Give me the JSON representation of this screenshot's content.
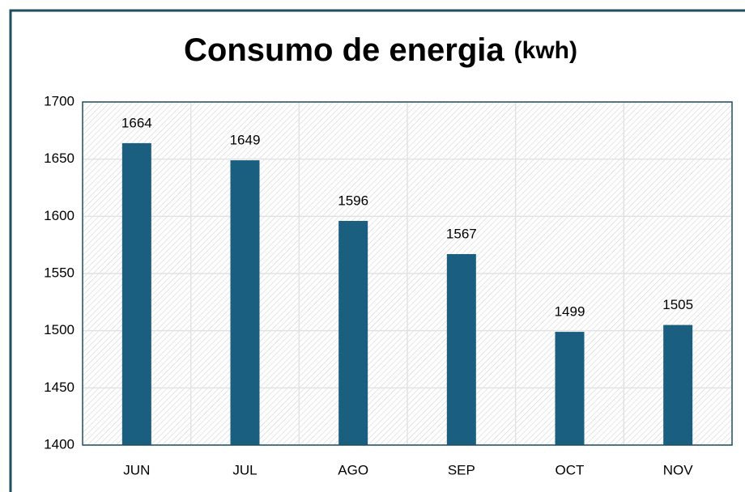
{
  "chart_data": {
    "type": "bar",
    "title": "Consumo de energia",
    "title_unit": "(kwh)",
    "categories": [
      "JUN",
      "JUL",
      "AGO",
      "SEP",
      "OCT",
      "NOV"
    ],
    "values": [
      1664,
      1649,
      1596,
      1567,
      1499,
      1505
    ],
    "color": "#1a5e80",
    "ylim": [
      1400,
      1700
    ],
    "yticks": [
      1400,
      1450,
      1500,
      1550,
      1600,
      1650,
      1700
    ],
    "grid": true
  }
}
